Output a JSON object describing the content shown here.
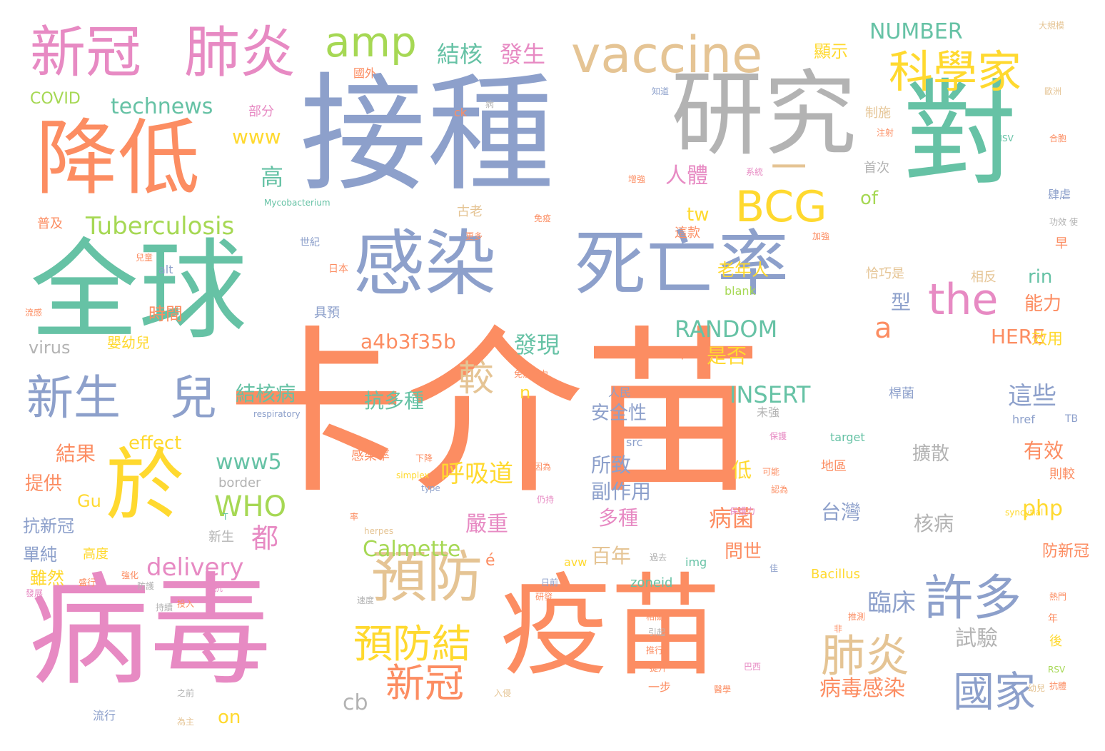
{
  "palette": {
    "orange": "#fc8d62",
    "teal": "#66c2a5",
    "blue": "#8da0cb",
    "pink": "#e78ac3",
    "green": "#a6d854",
    "yellow": "#ffd92f",
    "tan": "#e5c494",
    "gray": "#b3b3b3"
  },
  "words": [
    {
      "text": "卡介苗",
      "color": "orange"
    },
    {
      "text": "接種",
      "color": "blue"
    },
    {
      "text": "病毒",
      "color": "pink"
    },
    {
      "text": "疫苗",
      "color": "orange"
    },
    {
      "text": "全球",
      "color": "teal"
    },
    {
      "text": "對",
      "color": "teal"
    },
    {
      "text": "研究",
      "color": "gray"
    },
    {
      "text": "降低",
      "color": "orange"
    },
    {
      "text": "感染",
      "color": "blue"
    },
    {
      "text": "死亡率",
      "color": "blue"
    },
    {
      "text": "於",
      "color": "yellow"
    },
    {
      "text": "新冠",
      "color": "pink"
    },
    {
      "text": "肺炎",
      "color": "pink"
    },
    {
      "text": "vaccine",
      "color": "tan"
    },
    {
      "text": "amp",
      "color": "green"
    },
    {
      "text": "科學家",
      "color": "yellow"
    },
    {
      "text": "BCG",
      "color": "yellow"
    },
    {
      "text": "the",
      "color": "pink"
    },
    {
      "text": "一",
      "color": "tan"
    },
    {
      "text": "預防",
      "color": "tan"
    },
    {
      "text": "新生",
      "color": "blue"
    },
    {
      "text": "兒",
      "color": "blue"
    },
    {
      "text": "許多",
      "color": "blue"
    },
    {
      "text": "肺炎",
      "color": "tan"
    },
    {
      "text": "預防結",
      "color": "yellow"
    },
    {
      "text": "新冠",
      "color": "orange"
    },
    {
      "text": "國家",
      "color": "blue"
    },
    {
      "text": "較",
      "color": "tan"
    },
    {
      "text": "a",
      "color": "orange"
    },
    {
      "text": "Tuberculosis",
      "color": "green"
    },
    {
      "text": "technews",
      "color": "teal"
    },
    {
      "text": "結核",
      "color": "teal"
    },
    {
      "text": "發生",
      "color": "pink"
    },
    {
      "text": "NUMBER",
      "color": "teal"
    },
    {
      "text": "顯示",
      "color": "yellow"
    },
    {
      "text": "www",
      "color": "yellow"
    },
    {
      "text": "COVID",
      "color": "green"
    },
    {
      "text": "部分",
      "color": "pink"
    },
    {
      "text": "高",
      "color": "teal"
    },
    {
      "text": "人體",
      "color": "pink"
    },
    {
      "text": "tw",
      "color": "yellow"
    },
    {
      "text": "of",
      "color": "green"
    },
    {
      "text": "RANDOM",
      "color": "teal"
    },
    {
      "text": "a4b3f35b",
      "color": "orange"
    },
    {
      "text": "發現",
      "color": "teal"
    },
    {
      "text": "時間",
      "color": "orange"
    },
    {
      "text": "老年人",
      "color": "yellow"
    },
    {
      "text": "型",
      "color": "blue"
    },
    {
      "text": "是否",
      "color": "yellow"
    },
    {
      "text": "rin",
      "color": "teal"
    },
    {
      "text": "能力",
      "color": "orange"
    },
    {
      "text": "HERE",
      "color": "orange"
    },
    {
      "text": "INSERT",
      "color": "teal"
    },
    {
      "text": "這些",
      "color": "blue"
    },
    {
      "text": "n",
      "color": "yellow"
    },
    {
      "text": "結核病",
      "color": "teal"
    },
    {
      "text": "抗多種",
      "color": "teal"
    },
    {
      "text": "結果",
      "color": "orange"
    },
    {
      "text": "effect",
      "color": "yellow"
    },
    {
      "text": "www5",
      "color": "teal"
    },
    {
      "text": "呼吸道",
      "color": "yellow"
    },
    {
      "text": "所致",
      "color": "blue"
    },
    {
      "text": "安全性",
      "color": "blue"
    },
    {
      "text": "副作用",
      "color": "blue"
    },
    {
      "text": "WHO",
      "color": "green"
    },
    {
      "text": "php",
      "color": "yellow"
    },
    {
      "text": "有效",
      "color": "orange"
    },
    {
      "text": "擴散",
      "color": "gray"
    },
    {
      "text": "核病",
      "color": "gray"
    },
    {
      "text": "台灣",
      "color": "blue"
    },
    {
      "text": "病菌",
      "color": "orange"
    },
    {
      "text": "低",
      "color": "yellow"
    },
    {
      "text": "都",
      "color": "pink"
    },
    {
      "text": "嚴重",
      "color": "pink"
    },
    {
      "text": "多種",
      "color": "pink"
    },
    {
      "text": "百年",
      "color": "tan"
    },
    {
      "text": "問世",
      "color": "orange"
    },
    {
      "text": "delivery",
      "color": "pink"
    },
    {
      "text": "Calmette",
      "color": "green"
    },
    {
      "text": "é",
      "color": "orange"
    },
    {
      "text": "臨床",
      "color": "blue"
    },
    {
      "text": "試驗",
      "color": "gray"
    },
    {
      "text": "病毒感染",
      "color": "orange"
    },
    {
      "text": "cb",
      "color": "gray"
    },
    {
      "text": "on",
      "color": "yellow"
    },
    {
      "text": "提供",
      "color": "orange"
    },
    {
      "text": "抗新冠",
      "color": "blue"
    },
    {
      "text": "單純",
      "color": "blue"
    },
    {
      "text": "Gu",
      "color": "yellow"
    },
    {
      "text": "高度",
      "color": "yellow"
    },
    {
      "text": "雖然",
      "color": "yellow"
    },
    {
      "text": "virus",
      "color": "gray"
    },
    {
      "text": "嬰幼兒",
      "color": "yellow"
    },
    {
      "text": "alt",
      "color": "blue"
    },
    {
      "text": "具預",
      "color": "blue"
    },
    {
      "text": "一年",
      "color": "orange"
    },
    {
      "text": "恰巧是",
      "color": "tan"
    },
    {
      "text": "相反",
      "color": "tan"
    },
    {
      "text": "blank",
      "color": "green"
    },
    {
      "text": "效用",
      "color": "yellow"
    },
    {
      "text": "防新冠",
      "color": "orange"
    },
    {
      "text": "則較",
      "color": "orange"
    },
    {
      "text": "早",
      "color": "orange"
    },
    {
      "text": "世紀",
      "color": "blue"
    },
    {
      "text": "日本",
      "color": "orange"
    },
    {
      "text": "普及",
      "color": "orange"
    },
    {
      "text": "古老",
      "color": "tan"
    },
    {
      "text": "這款",
      "color": "orange"
    },
    {
      "text": "首次",
      "color": "gray"
    },
    {
      "text": "制施",
      "color": "tan"
    },
    {
      "text": "國外",
      "color": "orange"
    },
    {
      "text": "人民",
      "color": "blue"
    },
    {
      "text": "未強",
      "color": "gray"
    },
    {
      "text": "桿菌",
      "color": "blue"
    },
    {
      "text": "href",
      "color": "blue"
    },
    {
      "text": "TB",
      "color": "blue"
    },
    {
      "text": "target",
      "color": "teal"
    },
    {
      "text": "地區",
      "color": "orange"
    },
    {
      "text": "border",
      "color": "gray"
    },
    {
      "text": "src",
      "color": "blue"
    },
    {
      "text": "img",
      "color": "teal"
    },
    {
      "text": "zoneid",
      "color": "teal"
    },
    {
      "text": "avw",
      "color": "yellow"
    },
    {
      "text": "Bacillus",
      "color": "yellow"
    },
    {
      "text": "respiratory",
      "color": "blue"
    },
    {
      "text": "Mycobacterium",
      "color": "teal"
    },
    {
      "text": "HSV",
      "color": "teal"
    },
    {
      "text": "RSV",
      "color": "green"
    },
    {
      "text": "流行",
      "color": "blue"
    },
    {
      "text": "syncytial",
      "color": "yellow"
    },
    {
      "text": "herpes",
      "color": "tan"
    },
    {
      "text": "simplex",
      "color": "yellow"
    },
    {
      "text": "type",
      "color": "blue"
    },
    {
      "text": "感染率",
      "color": "orange"
    },
    {
      "text": "ck",
      "color": "orange"
    },
    {
      "text": "知道",
      "color": "blue"
    },
    {
      "text": "歐洲",
      "color": "tan"
    },
    {
      "text": "大規模",
      "color": "tan"
    },
    {
      "text": "注射",
      "color": "orange"
    },
    {
      "text": "合胞",
      "color": "orange"
    },
    {
      "text": "肆虐",
      "color": "blue"
    },
    {
      "text": "後",
      "color": "yellow"
    },
    {
      "text": "年",
      "color": "orange"
    },
    {
      "text": "一步",
      "color": "orange"
    },
    {
      "text": "入侵",
      "color": "tan"
    },
    {
      "text": "之前",
      "color": "gray"
    },
    {
      "text": "為主",
      "color": "tan"
    },
    {
      "text": "病",
      "color": "gray"
    },
    {
      "text": "免疫能力",
      "color": "orange"
    },
    {
      "text": "T",
      "color": "teal"
    },
    {
      "text": "新生",
      "color": "gray"
    },
    {
      "text": "兒童",
      "color": "orange"
    },
    {
      "text": "流感",
      "color": "orange"
    },
    {
      "text": "因為",
      "color": "orange"
    },
    {
      "text": "日前",
      "color": "blue"
    },
    {
      "text": "提升",
      "color": "orange"
    },
    {
      "text": "保護力",
      "color": "pink"
    },
    {
      "text": "率",
      "color": "orange"
    },
    {
      "text": "下降",
      "color": "orange"
    },
    {
      "text": "仍持",
      "color": "pink"
    },
    {
      "text": "增強",
      "color": "orange"
    },
    {
      "text": "免疫",
      "color": "orange"
    },
    {
      "text": "系統",
      "color": "pink"
    },
    {
      "text": "使",
      "color": "gray"
    },
    {
      "text": "功效",
      "color": "gray"
    },
    {
      "text": "加強",
      "color": "orange"
    },
    {
      "text": "更多",
      "color": "orange"
    },
    {
      "text": "抗",
      "color": "pink"
    },
    {
      "text": "防護",
      "color": "gray"
    },
    {
      "text": "強化",
      "color": "orange"
    },
    {
      "text": "可能",
      "color": "orange"
    },
    {
      "text": "認為",
      "color": "orange"
    },
    {
      "text": "相關",
      "color": "orange"
    },
    {
      "text": "引起",
      "color": "gray"
    },
    {
      "text": "推行",
      "color": "orange"
    },
    {
      "text": "保護",
      "color": "pink"
    },
    {
      "text": "過去",
      "color": "gray"
    },
    {
      "text": "速度",
      "color": "gray"
    },
    {
      "text": "投入",
      "color": "orange"
    },
    {
      "text": "醫學",
      "color": "orange"
    },
    {
      "text": "巴西",
      "color": "pink"
    },
    {
      "text": "推測",
      "color": "orange"
    },
    {
      "text": "幼兒",
      "color": "tan"
    },
    {
      "text": "佳",
      "color": "blue"
    },
    {
      "text": "持續",
      "color": "gray"
    },
    {
      "text": "非",
      "color": "orange"
    },
    {
      "text": "熱門",
      "color": "orange"
    },
    {
      "text": "抗體",
      "color": "orange"
    },
    {
      "text": "研發",
      "color": "orange"
    },
    {
      "text": "盛行",
      "color": "orange"
    },
    {
      "text": "發展",
      "color": "pink"
    }
  ]
}
